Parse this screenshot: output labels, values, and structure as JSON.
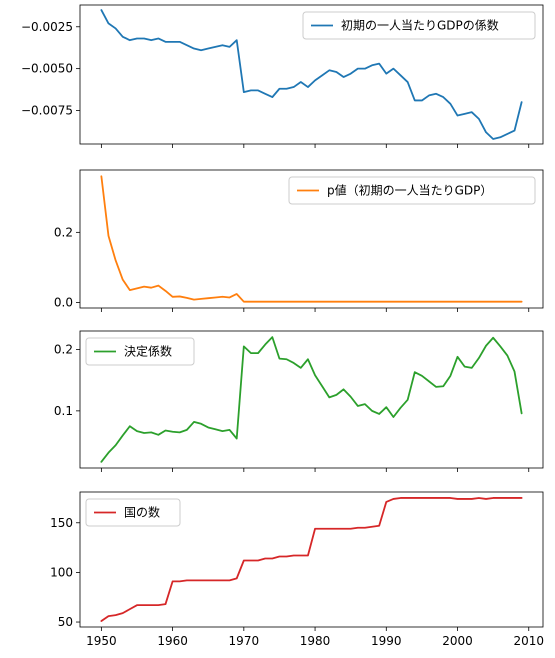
{
  "chart_data": [
    {
      "type": "line",
      "x": [
        1950,
        1951,
        1952,
        1953,
        1954,
        1955,
        1956,
        1957,
        1958,
        1959,
        1960,
        1961,
        1962,
        1963,
        1964,
        1965,
        1966,
        1967,
        1968,
        1969,
        1970,
        1971,
        1972,
        1973,
        1974,
        1975,
        1976,
        1977,
        1978,
        1979,
        1980,
        1981,
        1982,
        1983,
        1984,
        1985,
        1986,
        1987,
        1988,
        1989,
        1990,
        1991,
        1992,
        1993,
        1994,
        1995,
        1996,
        1997,
        1998,
        1999,
        2000,
        2001,
        2002,
        2003,
        2004,
        2005,
        2006,
        2007,
        2008,
        2009
      ],
      "series": [
        {
          "name": "初期の一人当たりGDPの係数",
          "color": "#1f77b4",
          "values": [
            -0.0015,
            -0.0023,
            -0.0026,
            -0.0031,
            -0.0033,
            -0.0032,
            -0.0032,
            -0.0033,
            -0.0032,
            -0.0034,
            -0.0034,
            -0.0034,
            -0.0036,
            -0.0038,
            -0.0039,
            -0.0038,
            -0.0037,
            -0.0036,
            -0.0037,
            -0.0033,
            -0.0064,
            -0.0063,
            -0.0063,
            -0.0065,
            -0.0067,
            -0.0062,
            -0.0062,
            -0.0061,
            -0.0058,
            -0.0061,
            -0.0057,
            -0.0054,
            -0.0051,
            -0.0052,
            -0.0055,
            -0.0053,
            -0.005,
            -0.005,
            -0.0048,
            -0.0047,
            -0.0053,
            -0.005,
            -0.0054,
            -0.0058,
            -0.0069,
            -0.0069,
            -0.0066,
            -0.0065,
            -0.0067,
            -0.0071,
            -0.0078,
            -0.0077,
            -0.0076,
            -0.008,
            -0.0088,
            -0.0092,
            -0.0091,
            -0.0089,
            -0.0087,
            -0.007
          ]
        }
      ],
      "yticks": [
        -0.0075,
        -0.005,
        -0.0025
      ],
      "ytick_labels": [
        "−0.0075",
        "−0.0050",
        "−0.0025"
      ],
      "ylim": [
        -0.0095,
        -0.0012
      ],
      "xlim": [
        1947,
        2012
      ],
      "legend": "upper right",
      "show_xtick_labels": false
    },
    {
      "type": "line",
      "x": [
        1950,
        1951,
        1952,
        1953,
        1954,
        1955,
        1956,
        1957,
        1958,
        1959,
        1960,
        1961,
        1962,
        1963,
        1964,
        1965,
        1966,
        1967,
        1968,
        1969,
        1970,
        1971,
        1972,
        1973,
        1974,
        1975,
        1976,
        1977,
        1978,
        1979,
        1980,
        1981,
        1982,
        1983,
        1984,
        1985,
        1986,
        1987,
        1988,
        1989,
        1990,
        1991,
        1992,
        1993,
        1994,
        1995,
        1996,
        1997,
        1998,
        1999,
        2000,
        2001,
        2002,
        2003,
        2004,
        2005,
        2006,
        2007,
        2008,
        2009
      ],
      "series": [
        {
          "name": "p値（初期の一人当たりGDP）",
          "color": "#ff7f0e",
          "values": [
            0.36,
            0.19,
            0.12,
            0.065,
            0.035,
            0.04,
            0.045,
            0.042,
            0.048,
            0.033,
            0.016,
            0.017,
            0.013,
            0.008,
            0.01,
            0.012,
            0.014,
            0.016,
            0.014,
            0.024,
            0.002,
            0.002,
            0.002,
            0.002,
            0.002,
            0.002,
            0.002,
            0.002,
            0.002,
            0.002,
            0.002,
            0.002,
            0.002,
            0.002,
            0.002,
            0.002,
            0.002,
            0.002,
            0.002,
            0.002,
            0.002,
            0.002,
            0.002,
            0.002,
            0.002,
            0.002,
            0.002,
            0.002,
            0.002,
            0.002,
            0.002,
            0.002,
            0.002,
            0.002,
            0.002,
            0.002,
            0.002,
            0.002,
            0.002,
            0.002
          ]
        }
      ],
      "yticks": [
        0.0,
        0.2
      ],
      "ytick_labels": [
        "0.0",
        "0.2"
      ],
      "ylim": [
        -0.016,
        0.378
      ],
      "xlim": [
        1947,
        2012
      ],
      "legend": "upper right",
      "show_xtick_labels": false
    },
    {
      "type": "line",
      "x": [
        1950,
        1951,
        1952,
        1953,
        1954,
        1955,
        1956,
        1957,
        1958,
        1959,
        1960,
        1961,
        1962,
        1963,
        1964,
        1965,
        1966,
        1967,
        1968,
        1969,
        1970,
        1971,
        1972,
        1973,
        1974,
        1975,
        1976,
        1977,
        1978,
        1979,
        1980,
        1981,
        1982,
        1983,
        1984,
        1985,
        1986,
        1987,
        1988,
        1989,
        1990,
        1991,
        1992,
        1993,
        1994,
        1995,
        1996,
        1997,
        1998,
        1999,
        2000,
        2001,
        2002,
        2003,
        2004,
        2005,
        2006,
        2007,
        2008,
        2009
      ],
      "series": [
        {
          "name": "決定係数",
          "color": "#2ca02c",
          "values": [
            0.017,
            0.032,
            0.044,
            0.06,
            0.075,
            0.067,
            0.064,
            0.065,
            0.061,
            0.068,
            0.066,
            0.065,
            0.069,
            0.082,
            0.079,
            0.073,
            0.07,
            0.067,
            0.069,
            0.055,
            0.205,
            0.194,
            0.194,
            0.208,
            0.22,
            0.185,
            0.184,
            0.178,
            0.17,
            0.184,
            0.158,
            0.14,
            0.122,
            0.126,
            0.135,
            0.123,
            0.108,
            0.111,
            0.1,
            0.095,
            0.106,
            0.09,
            0.105,
            0.118,
            0.163,
            0.157,
            0.148,
            0.139,
            0.14,
            0.157,
            0.188,
            0.172,
            0.17,
            0.186,
            0.206,
            0.219,
            0.205,
            0.19,
            0.164,
            0.096
          ]
        }
      ],
      "yticks": [
        0.1,
        0.2
      ],
      "ytick_labels": [
        "0.1",
        "0.2"
      ],
      "ylim": [
        0.007,
        0.23
      ],
      "xlim": [
        1947,
        2012
      ],
      "legend": "upper left",
      "show_xtick_labels": false
    },
    {
      "type": "line",
      "x": [
        1950,
        1951,
        1952,
        1953,
        1954,
        1955,
        1956,
        1957,
        1958,
        1959,
        1960,
        1961,
        1962,
        1963,
        1964,
        1965,
        1966,
        1967,
        1968,
        1969,
        1970,
        1971,
        1972,
        1973,
        1974,
        1975,
        1976,
        1977,
        1978,
        1979,
        1980,
        1981,
        1982,
        1983,
        1984,
        1985,
        1986,
        1987,
        1988,
        1989,
        1990,
        1991,
        1992,
        1993,
        1994,
        1995,
        1996,
        1997,
        1998,
        1999,
        2000,
        2001,
        2002,
        2003,
        2004,
        2005,
        2006,
        2007,
        2008,
        2009
      ],
      "series": [
        {
          "name": "国の数",
          "color": "#d62728",
          "values": [
            51,
            56,
            57,
            59,
            63,
            67,
            67,
            67,
            67,
            68,
            91,
            91,
            92,
            92,
            92,
            92,
            92,
            92,
            92,
            94,
            112,
            112,
            112,
            114,
            114,
            116,
            116,
            117,
            117,
            117,
            144,
            144,
            144,
            144,
            144,
            144,
            145,
            145,
            146,
            147,
            171,
            174,
            175,
            175,
            175,
            175,
            175,
            175,
            175,
            175,
            174,
            174,
            174,
            175,
            174,
            175,
            175,
            175,
            175,
            175
          ]
        }
      ],
      "yticks": [
        50,
        100,
        150
      ],
      "ytick_labels": [
        "50",
        "100",
        "150"
      ],
      "ylim": [
        45,
        181
      ],
      "xlim": [
        1947,
        2012
      ],
      "xticks": [
        1950,
        1960,
        1970,
        1980,
        1990,
        2000,
        2010
      ],
      "xtick_labels": [
        "1950",
        "1960",
        "1970",
        "1980",
        "1990",
        "2000",
        "2010"
      ],
      "legend": "upper left",
      "show_xtick_labels": true
    }
  ]
}
